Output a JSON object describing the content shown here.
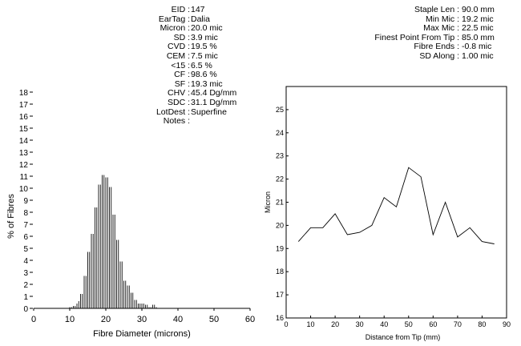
{
  "stats_left": [
    {
      "label": "EID :",
      "value": "147"
    },
    {
      "label": "EarTag :",
      "value": "Dalia"
    },
    {
      "label": "Micron :",
      "value": "20.0 mic"
    },
    {
      "label": "SD :",
      "value": "3.9 mic"
    },
    {
      "label": "CVD :",
      "value": "19.5 %"
    },
    {
      "label": "CEM :",
      "value": "7.5 mic"
    },
    {
      "label": "<15 :",
      "value": "6.5 %"
    },
    {
      "label": "CF :",
      "value": "98.6 %"
    },
    {
      "label": "SF :",
      "value": "19.3 mic"
    },
    {
      "label": "CHV :",
      "value": "45.4 Dg/mm"
    },
    {
      "label": "SDC :",
      "value": "31.1 Dg/mm"
    },
    {
      "label": "LotDest :",
      "value": "Superfine"
    },
    {
      "label": "Notes :",
      "value": ""
    }
  ],
  "stats_right": [
    {
      "label": "Staple Len :",
      "value": "90.0 mm"
    },
    {
      "label": "Min Mic :",
      "value": "19.2 mic"
    },
    {
      "label": "Max Mic :",
      "value": "22.5 mic"
    },
    {
      "label": "Finest Point From Tip :",
      "value": "85.0 mm"
    },
    {
      "label": "Fibre Ends :",
      "value": "-0.8 mic"
    },
    {
      "label": "SD Along :",
      "value": "1.00 mic"
    }
  ],
  "chart_data": [
    {
      "type": "bar",
      "xlabel": "Fibre Diameter (microns)",
      "ylabel": "% of Fibres",
      "xlim": [
        0,
        60
      ],
      "ylim": [
        0,
        18
      ],
      "xticks": [
        0,
        10,
        20,
        30,
        40,
        50,
        60
      ],
      "yticks": [
        0,
        1,
        2,
        3,
        4,
        5,
        6,
        7,
        8,
        9,
        10,
        11,
        12,
        13,
        14,
        15,
        16,
        17,
        18
      ],
      "x": [
        10,
        10.5,
        11,
        11.5,
        12,
        12.5,
        13,
        13.5,
        14,
        14.5,
        15,
        15.5,
        16,
        16.5,
        17,
        17.5,
        18,
        18.5,
        19,
        19.5,
        20,
        20.5,
        21,
        21.5,
        22,
        22.5,
        23,
        23.5,
        24,
        24.5,
        25,
        25.5,
        26,
        26.5,
        27,
        27.5,
        28,
        28.5,
        29,
        29.5,
        30,
        30.5,
        31,
        31.5,
        32,
        32.5,
        33,
        33.5,
        34
      ],
      "values": [
        0.1,
        0.1,
        0.2,
        0.2,
        0.4,
        0.6,
        1.2,
        1.2,
        2.7,
        2.7,
        4.7,
        4.7,
        6.2,
        6.2,
        8.4,
        8.4,
        10.3,
        10.3,
        11.1,
        11.1,
        10.9,
        10.9,
        10.1,
        10.1,
        7.8,
        7.8,
        5.7,
        5.7,
        3.9,
        3.9,
        2.3,
        2.3,
        1.9,
        1.9,
        1.3,
        1.3,
        0.7,
        0.7,
        0.4,
        0.4,
        0.4,
        0.4,
        0.3,
        0.3,
        0.1,
        0.1,
        0.3,
        0.3,
        0.1
      ]
    },
    {
      "type": "line",
      "xlabel": "Distance from Tip (mm)",
      "ylabel": "Micron",
      "xlim": [
        0,
        90
      ],
      "ylim": [
        16,
        26
      ],
      "xticks": [
        0,
        10,
        20,
        30,
        40,
        50,
        60,
        70,
        80,
        90
      ],
      "yticks": [
        16,
        17,
        18,
        19,
        20,
        21,
        22,
        23,
        24,
        25
      ],
      "x": [
        5,
        10,
        15,
        20,
        25,
        30,
        35,
        40,
        45,
        50,
        55,
        60,
        65,
        70,
        75,
        80,
        85
      ],
      "values": [
        19.3,
        19.9,
        19.9,
        20.5,
        19.6,
        19.7,
        20.0,
        21.2,
        20.8,
        22.5,
        22.1,
        19.6,
        21.0,
        19.5,
        19.9,
        19.3,
        19.2
      ]
    }
  ]
}
